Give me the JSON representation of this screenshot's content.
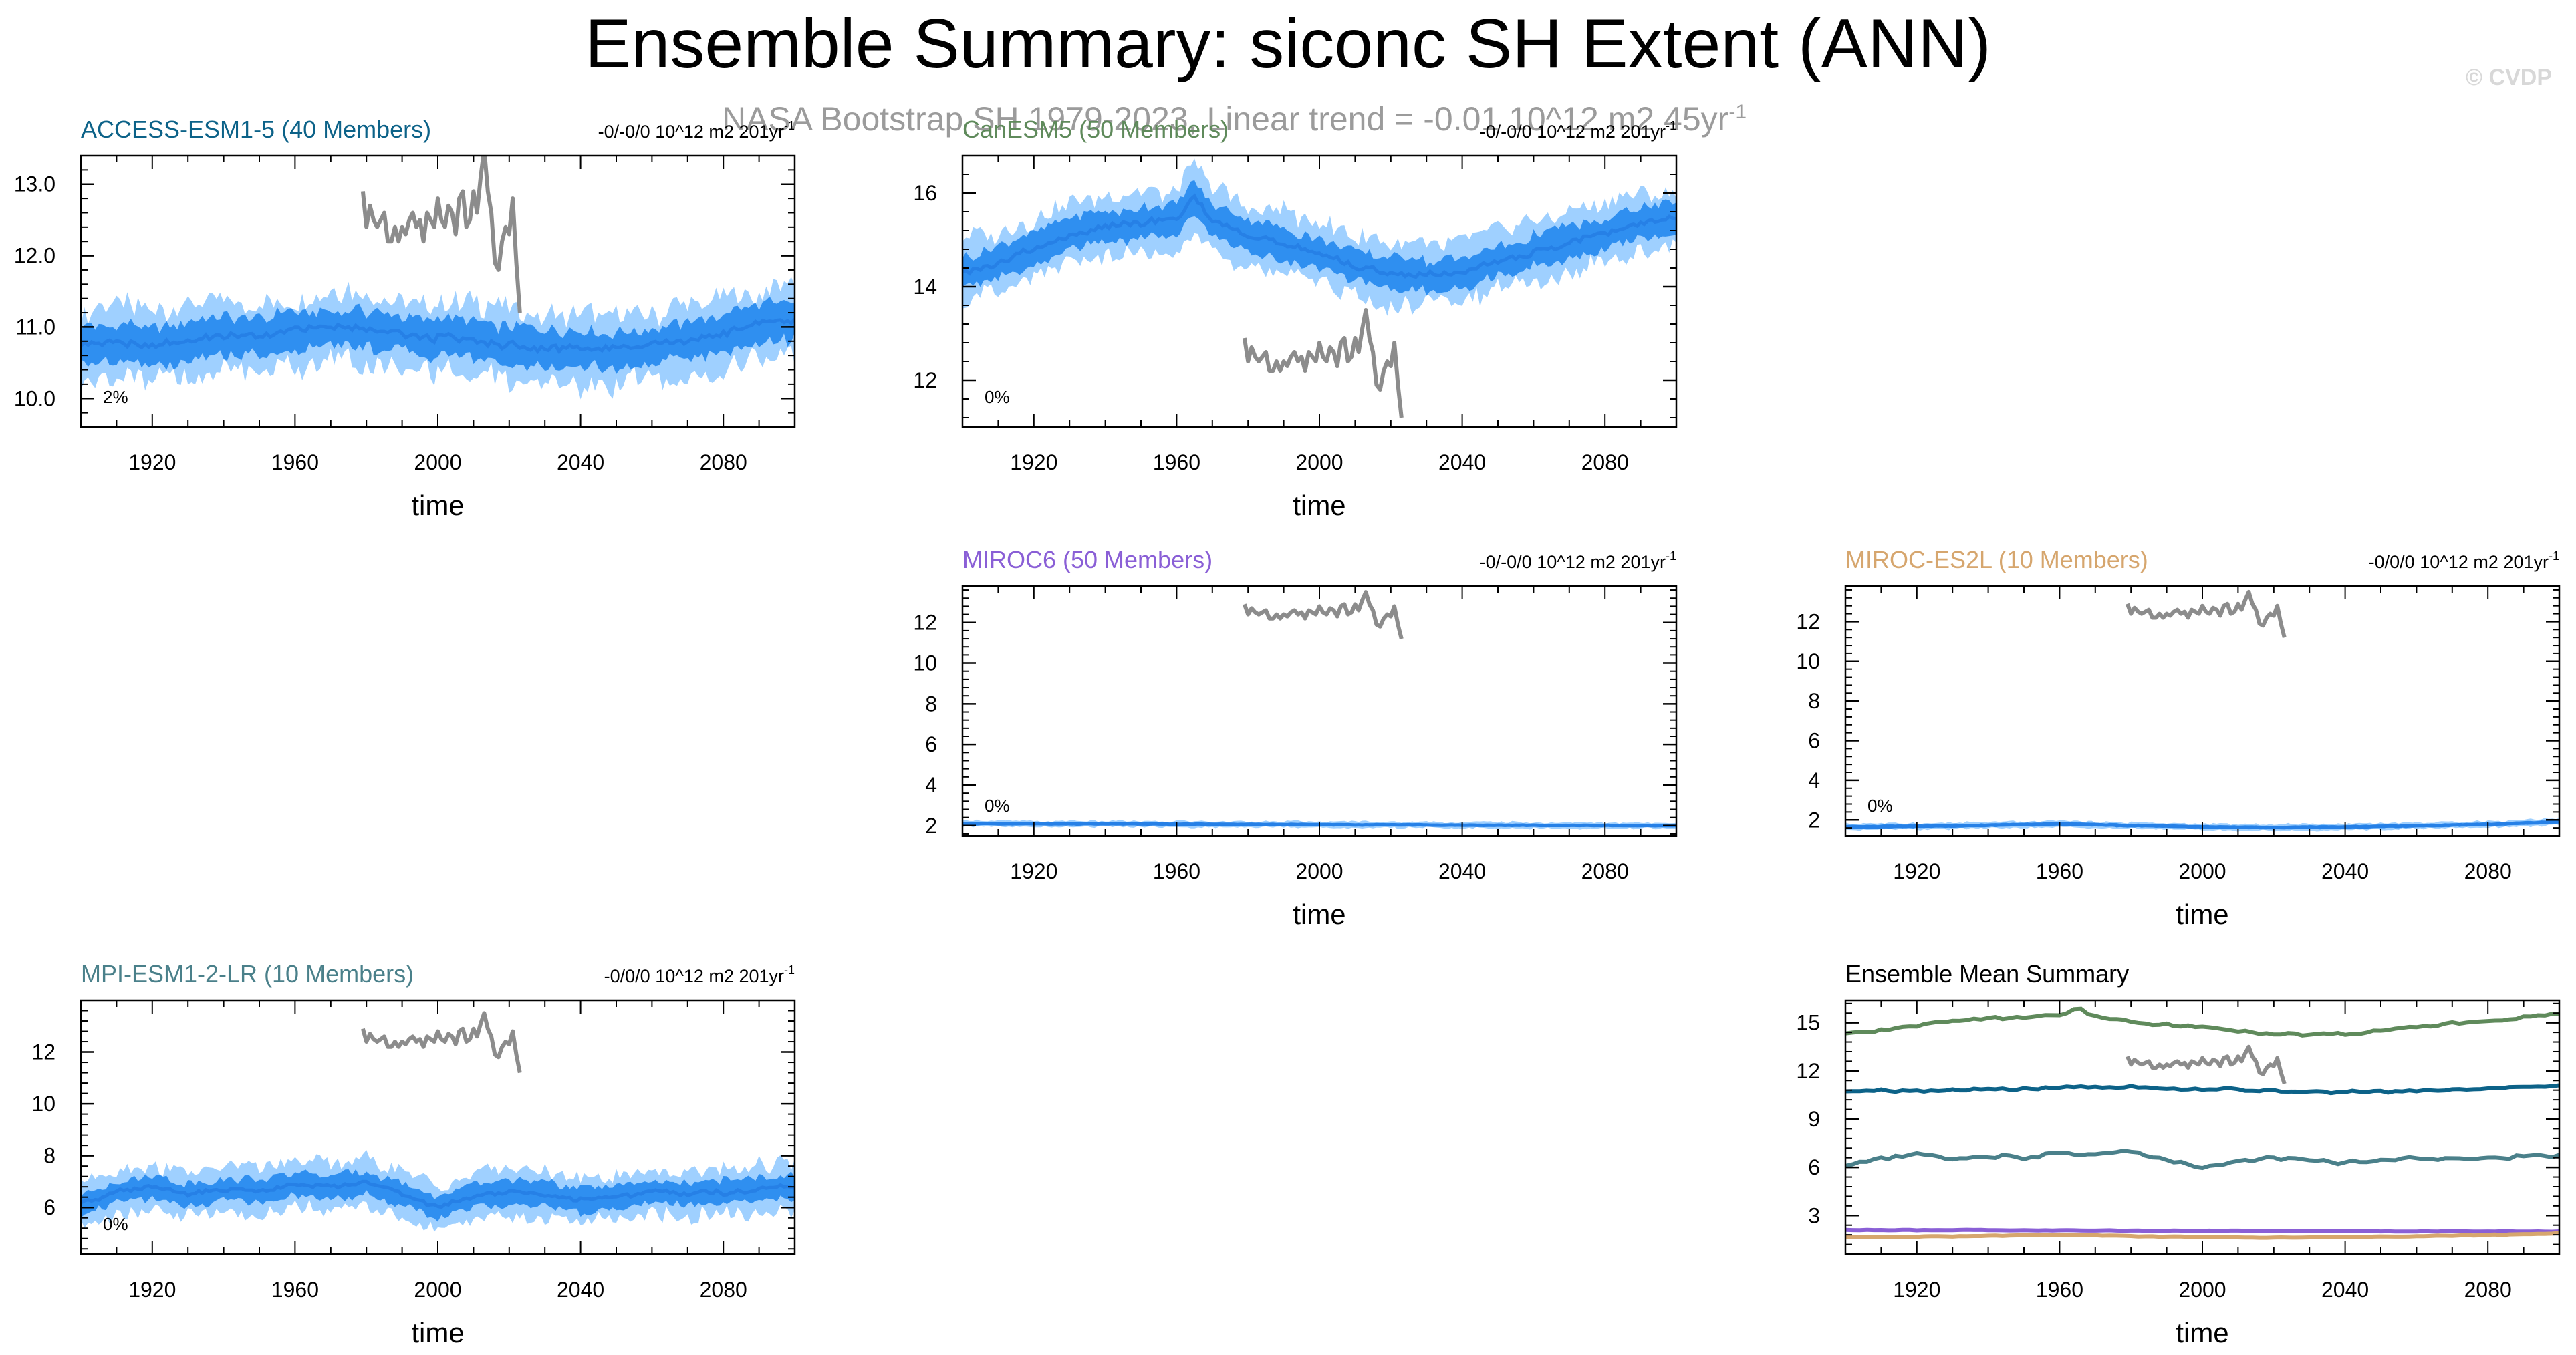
{
  "title": "Ensemble Summary: siconc SH Extent (ANN)",
  "subtitle": "NASA Bootstrap SH 1979-2023, Linear trend = -0.01 10^12 m2 45yr",
  "subtitle_sup": "-1",
  "credit": "© CVDP",
  "colors": {
    "band_outer": "#9fd0ff",
    "band_inner": "#2f8ff0",
    "median": "#2680e6",
    "obs": "#8c8c8c"
  },
  "observations": {
    "name": "NASA Bootstrap SH",
    "years": [
      1979,
      1980,
      1981,
      1982,
      1983,
      1984,
      1985,
      1986,
      1987,
      1988,
      1989,
      1990,
      1991,
      1992,
      1993,
      1994,
      1995,
      1996,
      1997,
      1998,
      1999,
      2000,
      2001,
      2002,
      2003,
      2004,
      2005,
      2006,
      2007,
      2008,
      2009,
      2010,
      2011,
      2012,
      2013,
      2014,
      2015,
      2016,
      2017,
      2018,
      2019,
      2020,
      2021,
      2022,
      2023
    ],
    "values": [
      12.9,
      12.4,
      12.7,
      12.5,
      12.4,
      12.5,
      12.6,
      12.2,
      12.2,
      12.4,
      12.2,
      12.4,
      12.3,
      12.5,
      12.6,
      12.4,
      12.5,
      12.2,
      12.6,
      12.5,
      12.4,
      12.8,
      12.5,
      12.4,
      12.7,
      12.6,
      12.3,
      12.8,
      12.9,
      12.4,
      12.5,
      12.9,
      12.6,
      13.1,
      13.5,
      12.9,
      12.6,
      11.9,
      11.8,
      12.2,
      12.4,
      12.3,
      12.8,
      11.9,
      11.2
    ]
  },
  "chart_data": [
    {
      "type": "area",
      "id": "access",
      "model": "ACCESS-ESM1-5 (40 Members)",
      "model_color": "#0c6288",
      "trend_label": "-0/-0/0 10^12 m2 201yr",
      "trend_sup": "-1",
      "pct_label": "2%",
      "xlabel": "time",
      "xlim": [
        1900,
        2100
      ],
      "ylim": [
        9.6,
        13.4
      ],
      "ticks": [
        10.0,
        11.0,
        12.0,
        13.0
      ],
      "tick_labels": [
        "10.0",
        "11.0",
        "12.0",
        "13.0"
      ],
      "xticks": [
        1920,
        1960,
        2000,
        2040,
        2080
      ],
      "median": {
        "years": [
          1900,
          1910,
          1920,
          1930,
          1940,
          1950,
          1960,
          1970,
          1980,
          1990,
          2000,
          2010,
          2020,
          2030,
          2040,
          2050,
          2060,
          2070,
          2080,
          2090,
          2100
        ],
        "values": [
          10.75,
          10.78,
          10.72,
          10.82,
          10.88,
          10.85,
          10.95,
          11.0,
          10.97,
          10.9,
          10.85,
          10.82,
          10.75,
          10.7,
          10.68,
          10.7,
          10.75,
          10.8,
          10.9,
          11.05,
          11.1
        ]
      },
      "inner_halfwidth": 0.32,
      "outer_halfwidth": 0.62,
      "obs_offset": 0.0,
      "series_color": "#0c6288"
    },
    {
      "type": "area",
      "id": "canesm5",
      "model": "CanESM5 (50 Members)",
      "model_color": "#5f8a5b",
      "trend_label": "-0/-0/0 10^12 m2 201yr",
      "trend_sup": "-1",
      "pct_label": "0%",
      "xlabel": "time",
      "xlim": [
        1900,
        2100
      ],
      "ylim": [
        11.0,
        16.8
      ],
      "ticks": [
        12,
        14,
        16
      ],
      "tick_labels": [
        "12",
        "14",
        "16"
      ],
      "xticks": [
        1920,
        1960,
        2000,
        2040,
        2080
      ],
      "median": {
        "years": [
          1900,
          1910,
          1920,
          1930,
          1940,
          1950,
          1960,
          1965,
          1970,
          1980,
          1990,
          2000,
          2010,
          2020,
          2030,
          2040,
          2050,
          2060,
          2070,
          2080,
          2090,
          2100
        ],
        "values": [
          14.3,
          14.5,
          14.8,
          15.1,
          15.3,
          15.35,
          15.45,
          15.9,
          15.4,
          15.1,
          14.9,
          14.7,
          14.45,
          14.3,
          14.25,
          14.3,
          14.55,
          14.75,
          14.95,
          15.15,
          15.35,
          15.5
        ]
      },
      "inner_halfwidth": 0.4,
      "outer_halfwidth": 0.8,
      "obs_offset": 0.0,
      "series_color": "#5f8a5b"
    },
    {
      "type": "area",
      "id": "miroc6",
      "model": "MIROC6 (50 Members)",
      "model_color": "#8a5fd6",
      "trend_label": "-0/-0/0 10^12 m2 201yr",
      "trend_sup": "-1",
      "pct_label": "0%",
      "xlabel": "time",
      "xlim": [
        1900,
        2100
      ],
      "ylim": [
        1.5,
        13.8
      ],
      "ticks": [
        2,
        4,
        6,
        8,
        10,
        12
      ],
      "tick_labels": [
        "2",
        "4",
        "6",
        "8",
        "10",
        "12"
      ],
      "xticks": [
        1920,
        1960,
        2000,
        2040,
        2080
      ],
      "median": {
        "years": [
          1900,
          1950,
          2000,
          2050,
          2100
        ],
        "values": [
          2.1,
          2.08,
          2.05,
          2.02,
          2.0
        ]
      },
      "inner_halfwidth": 0.08,
      "outer_halfwidth": 0.18,
      "obs_offset": 0.0,
      "series_color": "#8a5fd6"
    },
    {
      "type": "area",
      "id": "miroces2l",
      "model": "MIROC-ES2L (10 Members)",
      "model_color": "#d6a66e",
      "trend_label": "-0/0/0 10^12 m2 201yr",
      "trend_sup": "-1",
      "pct_label": "0%",
      "xlabel": "time",
      "xlim": [
        1900,
        2100
      ],
      "ylim": [
        1.2,
        13.8
      ],
      "ticks": [
        2,
        4,
        6,
        8,
        10,
        12
      ],
      "tick_labels": [
        "2",
        "4",
        "6",
        "8",
        "10",
        "12"
      ],
      "xticks": [
        1920,
        1960,
        2000,
        2040,
        2080
      ],
      "median": {
        "years": [
          1900,
          1930,
          1960,
          1980,
          2000,
          2020,
          2040,
          2060,
          2080,
          2100
        ],
        "values": [
          1.65,
          1.7,
          1.8,
          1.72,
          1.65,
          1.62,
          1.65,
          1.7,
          1.78,
          1.9
        ]
      },
      "inner_halfwidth": 0.1,
      "outer_halfwidth": 0.2,
      "obs_offset": 0.0,
      "series_color": "#d6a66e"
    },
    {
      "type": "area",
      "id": "mpi",
      "model": "MPI-ESM1-2-LR (10 Members)",
      "model_color": "#4a808a",
      "trend_label": "-0/0/0 10^12 m2 201yr",
      "trend_sup": "-1",
      "pct_label": "0%",
      "xlabel": "time",
      "xlim": [
        1900,
        2100
      ],
      "ylim": [
        4.2,
        14.0
      ],
      "ticks": [
        6,
        8,
        10,
        12
      ],
      "tick_labels": [
        "6",
        "8",
        "10",
        "12"
      ],
      "xticks": [
        1920,
        1960,
        2000,
        2040,
        2080
      ],
      "median": {
        "years": [
          1900,
          1910,
          1920,
          1930,
          1940,
          1950,
          1960,
          1970,
          1980,
          1990,
          2000,
          2010,
          2020,
          2030,
          2040,
          2050,
          2060,
          2070,
          2080,
          2090,
          2100
        ],
        "values": [
          6.1,
          6.6,
          6.8,
          6.5,
          6.7,
          6.6,
          6.9,
          6.8,
          7.0,
          6.5,
          6.0,
          6.4,
          6.6,
          6.5,
          6.3,
          6.4,
          6.6,
          6.5,
          6.6,
          6.7,
          6.8
        ]
      },
      "inner_halfwidth": 0.55,
      "outer_halfwidth": 1.1,
      "obs_offset": 0.0,
      "series_color": "#4a808a"
    },
    {
      "type": "line",
      "id": "summary",
      "model": "Ensemble Mean Summary",
      "model_color": "#000000",
      "xlabel": "time",
      "xlim": [
        1900,
        2100
      ],
      "ylim": [
        0.6,
        16.4
      ],
      "ticks": [
        3,
        6,
        9,
        12,
        15
      ],
      "tick_labels": [
        "3",
        "6",
        "9",
        "12",
        "15"
      ],
      "xticks": [
        1920,
        1960,
        2000,
        2040,
        2080
      ],
      "series": [
        {
          "name": "CanESM5",
          "color": "#5f8a5b",
          "ref": "canesm5"
        },
        {
          "name": "ACCESS-ESM1-5",
          "color": "#0c6288",
          "ref": "access"
        },
        {
          "name": "MPI-ESM1-2-LR",
          "color": "#4a808a",
          "ref": "mpi"
        },
        {
          "name": "MIROC6",
          "color": "#8a5fd6",
          "ref": "miroc6"
        },
        {
          "name": "MIROC-ES2L",
          "color": "#d6a66e",
          "ref": "miroces2l"
        }
      ]
    }
  ]
}
